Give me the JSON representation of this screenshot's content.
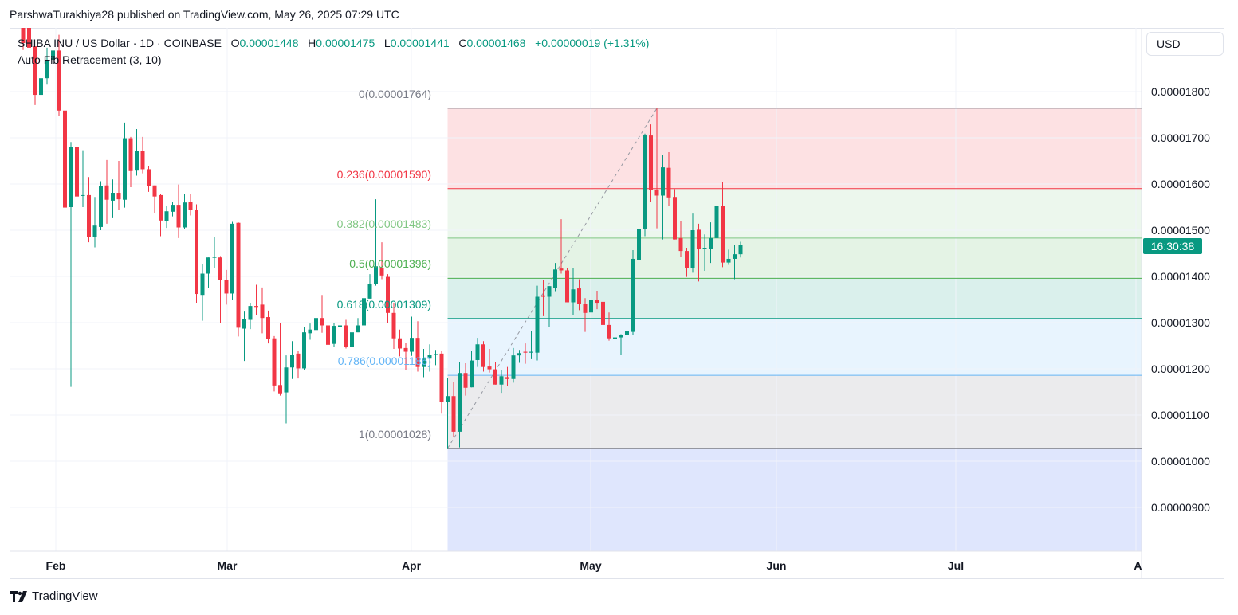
{
  "publisher_line": "ParshwaTurakhiya28 published on TradingView.com, May 26, 2025 07:29 UTC",
  "legend": {
    "symbol": "SHIBA INU / US Dollar · 1D · COINBASE",
    "o_label": "O",
    "o": "0.00001448",
    "h_label": "H",
    "h": "0.00001475",
    "l_label": "L",
    "l": "0.00001441",
    "c_label": "C",
    "c": "0.00001468",
    "change": "+0.00000019 (+1.31%)",
    "indicator": "Auto Fib Retracement (3, 10)"
  },
  "currency_button": "USD",
  "countdown": "16:30:38",
  "brand": "TradingView",
  "colors": {
    "up": "#089981",
    "down": "#f23645",
    "grid": "#f0f3fa"
  },
  "chart_data": {
    "type": "candlestick",
    "title": "SHIBA INU / US Dollar · 1D · COINBASE",
    "interval": "1D",
    "x_start": "2025-01-26",
    "x_end": "2025-05-26",
    "ylim": [
      8.2e-06,
      1.94e-05
    ],
    "y_ticks": [
      "0.00001800",
      "0.00001700",
      "0.00001600",
      "0.00001500",
      "0.00001400",
      "0.00001300",
      "0.00001200",
      "0.00001100",
      "0.00001000",
      "0.00000900"
    ],
    "x_ticks": [
      "Feb",
      "Mar",
      "Apr",
      "May",
      "Jun",
      "Jul",
      "Aug"
    ],
    "grid": true,
    "last_price": 1.468e-05,
    "ohlc": [
      [
        1.945e-05,
        1.955e-05,
        1.89e-05,
        1.905e-05
      ],
      [
        1.94e-05,
        1.95e-05,
        1.726e-05,
        1.895e-05
      ],
      [
        1.898e-05,
        1.898e-05,
        1.771e-05,
        1.793e-05
      ],
      [
        1.793e-05,
        1.88e-05,
        1.781e-05,
        1.829e-05
      ],
      [
        1.829e-05,
        1.895e-05,
        1.815e-05,
        1.869e-05
      ],
      [
        1.869e-05,
        1.94e-05,
        1.849e-05,
        1.889e-05
      ],
      [
        1.889e-05,
        1.923e-05,
        1.747e-05,
        1.759e-05
      ],
      [
        1.759e-05,
        1.794e-05,
        1.471e-05,
        1.549e-05
      ],
      [
        1.55e-05,
        1.691e-05,
        1.161e-05,
        1.681e-05
      ],
      [
        1.681e-05,
        1.695e-05,
        1.507e-05,
        1.573e-05
      ],
      [
        1.575e-05,
        1.673e-05,
        1.55e-05,
        1.576e-05
      ],
      [
        1.576e-05,
        1.615e-05,
        1.474e-05,
        1.485e-05
      ],
      [
        1.485e-05,
        1.572e-05,
        1.463e-05,
        1.51e-05
      ],
      [
        1.507e-05,
        1.606e-05,
        1.5e-05,
        1.595e-05
      ],
      [
        1.597e-05,
        1.652e-05,
        1.514e-05,
        1.566e-05
      ],
      [
        1.564e-05,
        1.61e-05,
        1.526e-05,
        1.581e-05
      ],
      [
        1.581e-05,
        1.65e-05,
        1.544e-05,
        1.567e-05
      ],
      [
        1.566e-05,
        1.733e-05,
        1.549e-05,
        1.699e-05
      ],
      [
        1.699e-05,
        1.702e-05,
        1.593e-05,
        1.628e-05
      ],
      [
        1.629e-05,
        1.719e-05,
        1.618e-05,
        1.671e-05
      ],
      [
        1.671e-05,
        1.702e-05,
        1.623e-05,
        1.632e-05
      ],
      [
        1.632e-05,
        1.639e-05,
        1.583e-05,
        1.595e-05
      ],
      [
        1.597e-05,
        1.597e-05,
        1.538e-05,
        1.573e-05
      ],
      [
        1.576e-05,
        1.579e-05,
        1.487e-05,
        1.521e-05
      ],
      [
        1.52e-05,
        1.553e-05,
        1.505e-05,
        1.541e-05
      ],
      [
        1.54e-05,
        1.561e-05,
        1.53e-05,
        1.555e-05
      ],
      [
        1.555e-05,
        1.599e-05,
        1.483e-05,
        1.506e-05
      ],
      [
        1.506e-05,
        1.578e-05,
        1.502e-05,
        1.56e-05
      ],
      [
        1.561e-05,
        1.578e-05,
        1.532e-05,
        1.544e-05
      ],
      [
        1.544e-05,
        1.556e-05,
        1.343e-05,
        1.362e-05
      ],
      [
        1.36e-05,
        1.426e-05,
        1.304e-05,
        1.406e-05
      ],
      [
        1.406e-05,
        1.441e-05,
        1.375e-05,
        1.441e-05
      ],
      [
        1.441e-05,
        1.485e-05,
        1.418e-05,
        1.442e-05
      ],
      [
        1.441e-05,
        1.444e-05,
        1.299e-05,
        1.392e-05
      ],
      [
        1.393e-05,
        1.414e-05,
        1.339e-05,
        1.363e-05
      ],
      [
        1.363e-05,
        1.518e-05,
        1.349e-05,
        1.514e-05
      ],
      [
        1.516e-05,
        1.517e-05,
        1.27e-05,
        1.289e-05
      ],
      [
        1.287e-05,
        1.324e-05,
        1.217e-05,
        1.307e-05
      ],
      [
        1.306e-05,
        1.343e-05,
        1.286e-05,
        1.336e-05
      ],
      [
        1.336e-05,
        1.382e-05,
        1.316e-05,
        1.334e-05
      ],
      [
        1.339e-05,
        1.376e-05,
        1.277e-05,
        1.31e-05
      ],
      [
        1.312e-05,
        1.326e-05,
        1.255e-05,
        1.264e-05
      ],
      [
        1.266e-05,
        1.271e-05,
        1.151e-05,
        1.164e-05
      ],
      [
        1.165e-05,
        1.3e-05,
        1.142e-05,
        1.147e-05
      ],
      [
        1.149e-05,
        1.229e-05,
        1.082e-05,
        1.203e-05
      ],
      [
        1.203e-05,
        1.26e-05,
        1.178e-05,
        1.231e-05
      ],
      [
        1.233e-05,
        1.238e-05,
        1.179e-05,
        1.201e-05
      ],
      [
        1.201e-05,
        1.291e-05,
        1.198e-05,
        1.279e-05
      ],
      [
        1.277e-05,
        1.298e-05,
        1.263e-05,
        1.285e-05
      ],
      [
        1.284e-05,
        1.382e-05,
        1.257e-05,
        1.31e-05
      ],
      [
        1.31e-05,
        1.36e-05,
        1.278e-05,
        1.294e-05
      ],
      [
        1.294e-05,
        1.294e-05,
        1.227e-05,
        1.252e-05
      ],
      [
        1.254e-05,
        1.3e-05,
        1.247e-05,
        1.293e-05
      ],
      [
        1.291e-05,
        1.303e-05,
        1.262e-05,
        1.294e-05
      ],
      [
        1.294e-05,
        1.306e-05,
        1.244e-05,
        1.248e-05
      ],
      [
        1.248e-05,
        1.294e-05,
        1.248e-05,
        1.279e-05
      ],
      [
        1.279e-05,
        1.31e-05,
        1.279e-05,
        1.294e-05
      ],
      [
        1.294e-05,
        1.369e-05,
        1.277e-05,
        1.353e-05
      ],
      [
        1.352e-05,
        1.405e-05,
        1.352e-05,
        1.384e-05
      ],
      [
        1.383e-05,
        1.567e-05,
        1.38e-05,
        1.422e-05
      ],
      [
        1.419e-05,
        1.474e-05,
        1.394e-05,
        1.402e-05
      ],
      [
        1.399e-05,
        1.405e-05,
        1.3e-05,
        1.321e-05
      ],
      [
        1.321e-05,
        1.343e-05,
        1.243e-05,
        1.266e-05
      ],
      [
        1.266e-05,
        1.285e-05,
        1.227e-05,
        1.244e-05
      ],
      [
        1.245e-05,
        1.257e-05,
        1.197e-05,
        1.237e-05
      ],
      [
        1.237e-05,
        1.313e-05,
        1.228e-05,
        1.267e-05
      ],
      [
        1.267e-05,
        1.303e-05,
        1.194e-05,
        1.204e-05
      ],
      [
        1.204e-05,
        1.243e-05,
        1.182e-05,
        1.222e-05
      ],
      [
        1.222e-05,
        1.253e-05,
        1.194e-05,
        1.231e-05
      ],
      [
        1.231e-05,
        1.241e-05,
        1.208e-05,
        1.232e-05
      ],
      [
        1.233e-05,
        1.238e-05,
        1.103e-05,
        1.129e-05
      ],
      [
        1.128e-05,
        1.181e-05,
        1.028e-05,
        1.141e-05
      ],
      [
        1.141e-05,
        1.172e-05,
        1.053e-05,
        1.064e-05
      ],
      [
        1.064e-05,
        1.214e-05,
        1.03e-05,
        1.191e-05
      ],
      [
        1.191e-05,
        1.212e-05,
        1.142e-05,
        1.159e-05
      ],
      [
        1.16e-05,
        1.238e-05,
        1.16e-05,
        1.218e-05
      ],
      [
        1.219e-05,
        1.267e-05,
        1.204e-05,
        1.253e-05
      ],
      [
        1.253e-05,
        1.26e-05,
        1.194e-05,
        1.204e-05
      ],
      [
        1.205e-05,
        1.243e-05,
        1.192e-05,
        1.199e-05
      ],
      [
        1.199e-05,
        1.214e-05,
        1.166e-05,
        1.166e-05
      ],
      [
        1.166e-05,
        1.198e-05,
        1.148e-05,
        1.184e-05
      ],
      [
        1.182e-05,
        1.204e-05,
        1.163e-05,
        1.178e-05
      ],
      [
        1.178e-05,
        1.245e-05,
        1.17e-05,
        1.229e-05
      ],
      [
        1.229e-05,
        1.241e-05,
        1.213e-05,
        1.234e-05
      ],
      [
        1.237e-05,
        1.255e-05,
        1.211e-05,
        1.235e-05
      ],
      [
        1.235e-05,
        1.281e-05,
        1.221e-05,
        1.237e-05
      ],
      [
        1.235e-05,
        1.38e-05,
        1.218e-05,
        1.356e-05
      ],
      [
        1.359e-05,
        1.392e-05,
        1.314e-05,
        1.356e-05
      ],
      [
        1.356e-05,
        1.379e-05,
        1.29e-05,
        1.379e-05
      ],
      [
        1.375e-05,
        1.429e-05,
        1.368e-05,
        1.415e-05
      ],
      [
        1.417e-05,
        1.524e-05,
        1.406e-05,
        1.413e-05
      ],
      [
        1.413e-05,
        1.419e-05,
        1.344e-05,
        1.344e-05
      ],
      [
        1.344e-05,
        1.419e-05,
        1.316e-05,
        1.372e-05
      ],
      [
        1.374e-05,
        1.394e-05,
        1.327e-05,
        1.34e-05
      ],
      [
        1.341e-05,
        1.353e-05,
        1.28e-05,
        1.321e-05
      ],
      [
        1.322e-05,
        1.374e-05,
        1.319e-05,
        1.35e-05
      ],
      [
        1.35e-05,
        1.369e-05,
        1.329e-05,
        1.343e-05
      ],
      [
        1.345e-05,
        1.348e-05,
        1.289e-05,
        1.295e-05
      ],
      [
        1.295e-05,
        1.322e-05,
        1.261e-05,
        1.266e-05
      ],
      [
        1.265e-05,
        1.297e-05,
        1.252e-05,
        1.268e-05
      ],
      [
        1.268e-05,
        1.275e-05,
        1.231e-05,
        1.274e-05
      ],
      [
        1.273e-05,
        1.293e-05,
        1.255e-05,
        1.281e-05
      ],
      [
        1.28e-05,
        1.457e-05,
        1.274e-05,
        1.438e-05
      ],
      [
        1.436e-05,
        1.518e-05,
        1.411e-05,
        1.503e-05
      ],
      [
        1.502e-05,
        1.709e-05,
        1.487e-05,
        1.707e-05
      ],
      [
        1.705e-05,
        1.729e-05,
        1.561e-05,
        1.587e-05
      ],
      [
        1.588e-05,
        1.764e-05,
        1.504e-05,
        1.575e-05
      ],
      [
        1.575e-05,
        1.662e-05,
        1.48e-05,
        1.636e-05
      ],
      [
        1.635e-05,
        1.669e-05,
        1.552e-05,
        1.571e-05
      ],
      [
        1.572e-05,
        1.589e-05,
        1.48e-05,
        1.48e-05
      ],
      [
        1.483e-05,
        1.52e-05,
        1.442e-05,
        1.455e-05
      ],
      [
        1.455e-05,
        1.462e-05,
        1.399e-05,
        1.418e-05
      ],
      [
        1.418e-05,
        1.536e-05,
        1.408e-05,
        1.5e-05
      ],
      [
        1.501e-05,
        1.514e-05,
        1.389e-05,
        1.459e-05
      ],
      [
        1.46e-05,
        1.491e-05,
        1.412e-05,
        1.462e-05
      ],
      [
        1.459e-05,
        1.517e-05,
        1.429e-05,
        1.483e-05
      ],
      [
        1.483e-05,
        1.553e-05,
        1.483e-05,
        1.553e-05
      ],
      [
        1.553e-05,
        1.605e-05,
        1.42e-05,
        1.43e-05
      ],
      [
        1.43e-05,
        1.458e-05,
        1.425e-05,
        1.438e-05
      ],
      [
        1.438e-05,
        1.468e-05,
        1.394e-05,
        1.448e-05
      ],
      [
        1.448e-05,
        1.475e-05,
        1.441e-05,
        1.468e-05
      ]
    ],
    "fib": {
      "start_index": 71,
      "end_index": 106,
      "levels": [
        {
          "ratio": 0,
          "price": 1.764e-05,
          "label": "0(0.00001764)",
          "color": "#787b86",
          "zone": "rgba(242,54,69,0.15)"
        },
        {
          "ratio": 0.236,
          "price": 1.59e-05,
          "label": "0.236(0.00001590)",
          "color": "#f23645",
          "zone": "rgba(129,199,132,0.15)"
        },
        {
          "ratio": 0.382,
          "price": 1.483e-05,
          "label": "0.382(0.00001483)",
          "color": "#81c784",
          "zone": "rgba(76,175,80,0.15)"
        },
        {
          "ratio": 0.5,
          "price": 1.396e-05,
          "label": "0.5(0.00001396)",
          "color": "#4caf50",
          "zone": "rgba(8,153,129,0.15)"
        },
        {
          "ratio": 0.618,
          "price": 1.309e-05,
          "label": "0.618(0.00001309)",
          "color": "#089981",
          "zone": "rgba(100,181,246,0.15)"
        },
        {
          "ratio": 0.786,
          "price": 1.186e-05,
          "label": "0.786(0.00001186)",
          "color": "#64b5f6",
          "zone": "rgba(120,123,134,0.15)"
        },
        {
          "ratio": 1,
          "price": 1.028e-05,
          "label": "1(0.00001028)",
          "color": "#787b86",
          "zone": "rgba(94,129,244,0.2)"
        }
      ]
    }
  }
}
